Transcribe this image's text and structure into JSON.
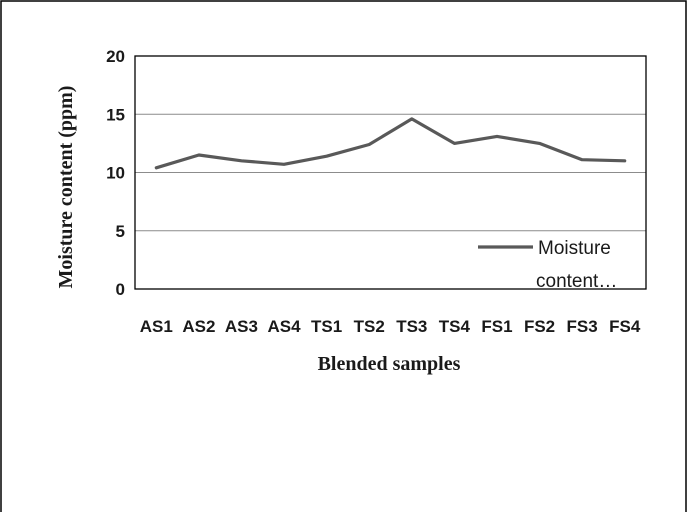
{
  "chart_data": {
    "type": "line",
    "categories": [
      "AS1",
      "AS2",
      "AS3",
      "AS4",
      "TS1",
      "TS2",
      "TS3",
      "TS4",
      "FS1",
      "FS2",
      "FS3",
      "FS4"
    ],
    "series": [
      {
        "name": "Moisture content…",
        "values": [
          10.4,
          11.5,
          11.0,
          10.7,
          11.4,
          12.4,
          14.6,
          12.5,
          13.1,
          12.5,
          11.1,
          11.0
        ]
      }
    ],
    "xlabel": "Blended samples",
    "ylabel": "Moisture content (ppm)",
    "ylim": [
      0,
      20
    ],
    "yticks": [
      "0",
      "5",
      "10",
      "15",
      "20"
    ],
    "grid": true,
    "legend_position": "bottom-right",
    "colors": {
      "line": "#595959",
      "grid": "#8c8c8c",
      "frame": "#000000"
    }
  }
}
